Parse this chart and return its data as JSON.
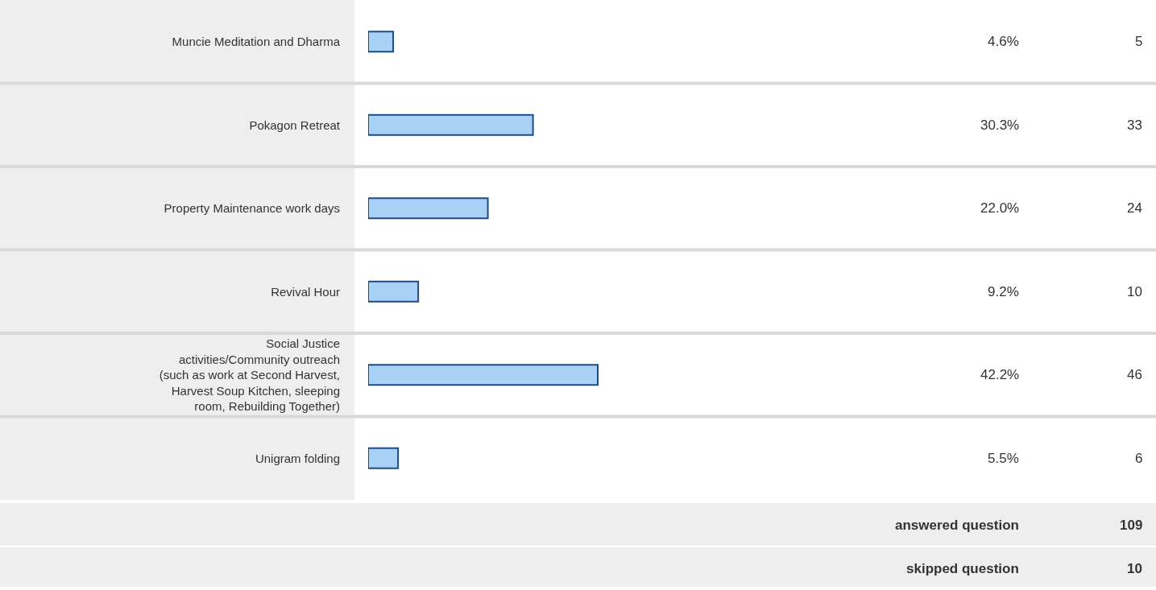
{
  "chart_data": {
    "type": "bar",
    "orientation": "horizontal",
    "categories": [
      "Muncie Meditation and Dharma",
      "Pokagon Retreat",
      "Property Maintenance work days",
      "Revival Hour",
      "Social Justice activities/Community outreach (such as work at Second Harvest, Harvest Soup Kitchen, sleeping room, Rebuilding Together)",
      "Unigram folding"
    ],
    "values": [
      4.6,
      30.3,
      22.0,
      9.2,
      42.2,
      5.5
    ],
    "value_labels": [
      "4.6%",
      "30.3%",
      "22.0%",
      "9.2%",
      "42.2%",
      "5.5%"
    ],
    "color": "#a9d1f5",
    "tick_labels": "y",
    "grid": false,
    "legend": false,
    "annotations": [
      "5",
      "33",
      "24",
      "10",
      "46",
      "6",
      "answered question",
      "109",
      "skipped question",
      "10"
    ]
  }
}
